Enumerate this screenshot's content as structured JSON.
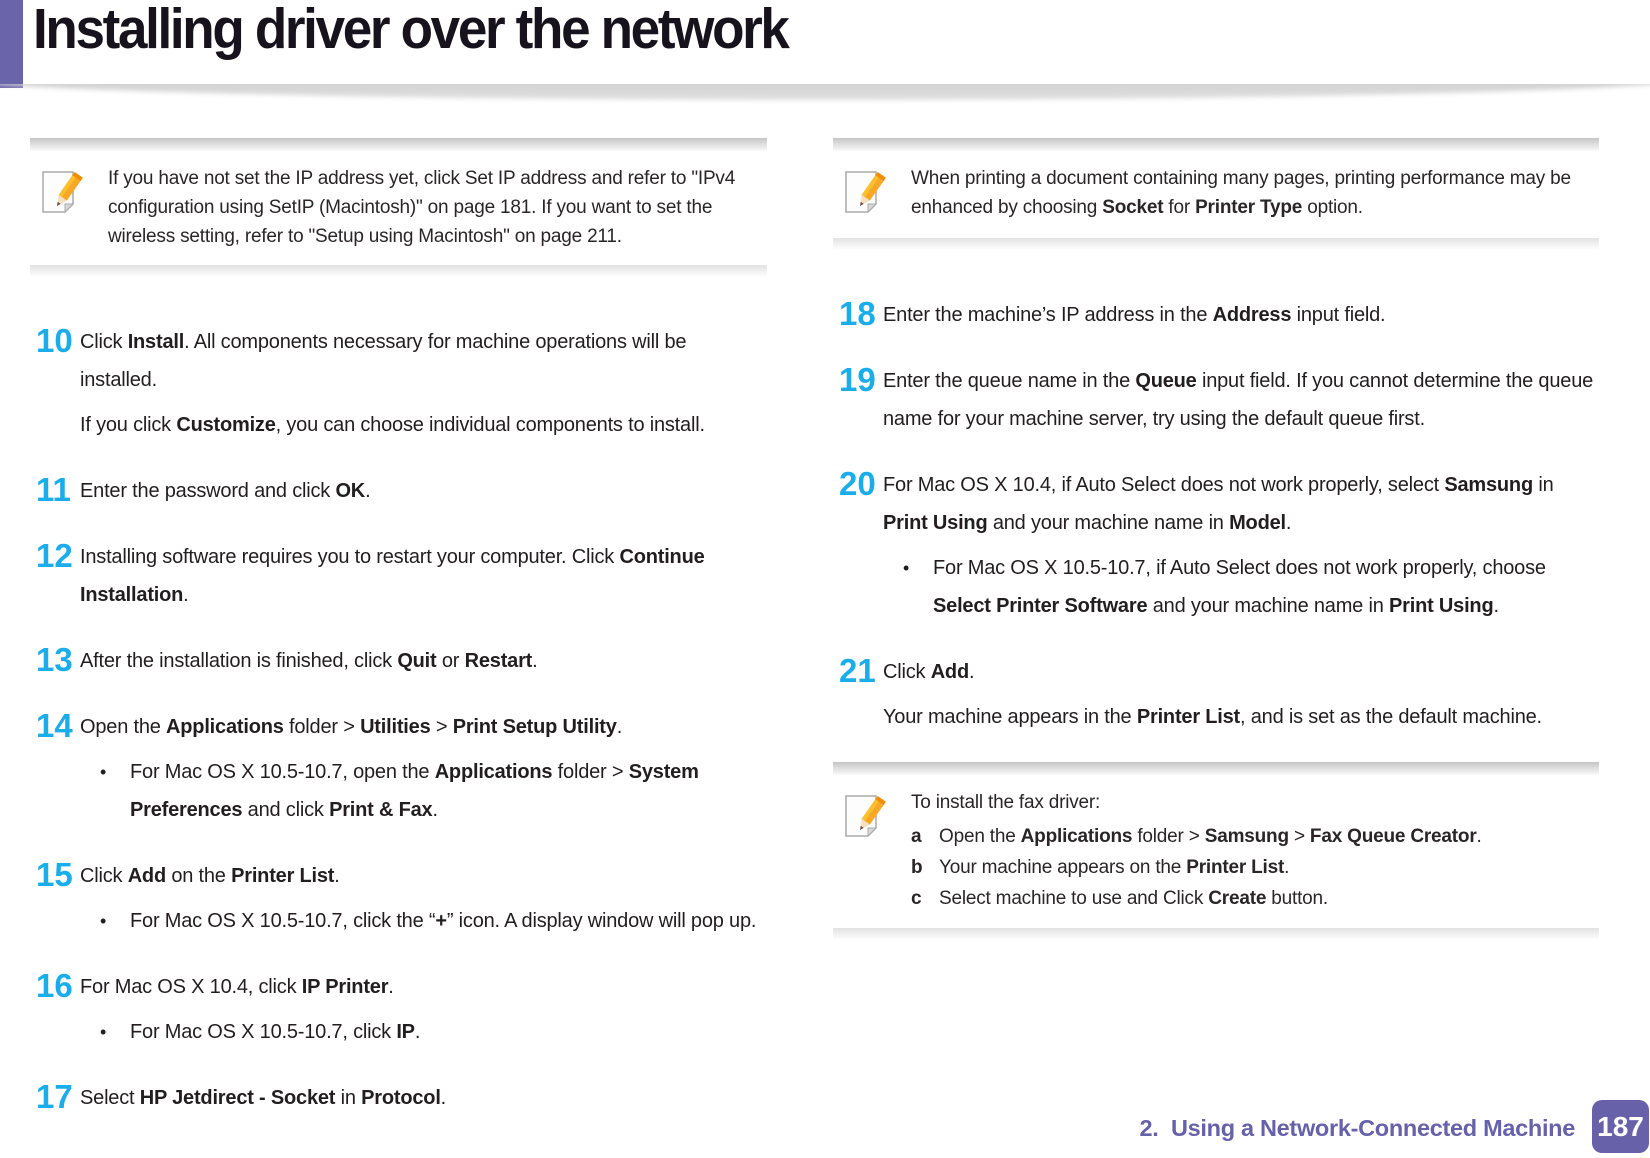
{
  "header": {
    "title": "Installing driver over the network"
  },
  "footer": {
    "chapter": "2.  Using a Network-Connected Machine",
    "page_number": "187"
  },
  "colors": {
    "accent_purple": "#6a64ab",
    "step_number_cyan": "#1badea",
    "footer_purple": "#6661a8"
  },
  "left_column": {
    "note": {
      "icon": "pencil-note-icon",
      "text": [
        "If you have not set the IP address yet, click Set IP address and refer to \"IPv4 configuration using SetIP (Macintosh)\" on page 181. If you want to set the wireless setting, refer to \"Setup using Macintosh\" on page 211."
      ]
    },
    "steps": [
      {
        "number": "10",
        "paragraphs": [
          [
            "Click ",
            {
              "b": "Install"
            },
            ". All components necessary for machine operations will be installed."
          ],
          [
            "If you click ",
            {
              "b": "Customize"
            },
            ", you can choose individual components to install."
          ]
        ]
      },
      {
        "number": "11",
        "paragraphs": [
          [
            "Enter the password and click ",
            {
              "b": "OK"
            },
            "."
          ]
        ]
      },
      {
        "number": "12",
        "paragraphs": [
          [
            "Installing software requires you to restart your computer. Click ",
            {
              "b": "Continue Installation"
            },
            "."
          ]
        ]
      },
      {
        "number": "13",
        "paragraphs": [
          [
            "After the installation is finished, click ",
            {
              "b": "Quit"
            },
            " or ",
            {
              "b": "Restart"
            },
            "."
          ]
        ]
      },
      {
        "number": "14",
        "paragraphs": [
          [
            "Open the ",
            {
              "b": "Applications"
            },
            " folder > ",
            {
              "b": "Utilities"
            },
            " > ",
            {
              "b": "Print Setup Utility"
            },
            "."
          ]
        ],
        "bullets": [
          [
            "For Mac OS X 10.5-10.7, open the ",
            {
              "b": "Applications"
            },
            " folder > ",
            {
              "b": "System Preferences"
            },
            " and click ",
            {
              "b": "Print & Fax"
            },
            "."
          ]
        ]
      },
      {
        "number": "15",
        "paragraphs": [
          [
            "Click ",
            {
              "b": "Add"
            },
            " on the ",
            {
              "b": "Printer List"
            },
            "."
          ]
        ],
        "bullets": [
          [
            "For Mac OS X 10.5-10.7, click the “",
            {
              "b": "+"
            },
            "” icon. A display window will pop up."
          ]
        ]
      },
      {
        "number": "16",
        "paragraphs": [
          [
            "For Mac OS X 10.4, click ",
            {
              "b": "IP Printer"
            },
            "."
          ]
        ],
        "bullets": [
          [
            "For Mac OS X 10.5-10.7, click ",
            {
              "b": "IP"
            },
            "."
          ]
        ]
      },
      {
        "number": "17",
        "paragraphs": [
          [
            "Select ",
            {
              "b": "HP Jetdirect - Socket"
            },
            " in ",
            {
              "b": "Protocol"
            },
            "."
          ]
        ]
      }
    ]
  },
  "right_column": {
    "note_top": {
      "icon": "pencil-note-icon",
      "text": [
        "When printing a document containing many pages, printing performance may be enhanced by choosing ",
        {
          "b": "Socket"
        },
        " for ",
        {
          "b": "Printer Type"
        },
        " option."
      ]
    },
    "steps": [
      {
        "number": "18",
        "paragraphs": [
          [
            "Enter the machine’s IP address in the ",
            {
              "b": "Address"
            },
            " input field."
          ]
        ]
      },
      {
        "number": "19",
        "paragraphs": [
          [
            "Enter the queue name in the ",
            {
              "b": "Queue"
            },
            " input field. If you cannot determine the queue name for your machine server, try using the default queue first."
          ]
        ]
      },
      {
        "number": "20",
        "paragraphs": [
          [
            "For Mac OS X 10.4, if Auto Select does not work properly, select ",
            {
              "b": "Samsung"
            },
            " in ",
            {
              "b": "Print Using"
            },
            " and your machine name in ",
            {
              "b": "Model"
            },
            "."
          ]
        ],
        "bullets": [
          [
            "For Mac OS X 10.5-10.7, if Auto Select does not work properly, choose ",
            {
              "b": "Select Printer Software"
            },
            " and your machine name in ",
            {
              "b": "Print Using"
            },
            "."
          ]
        ]
      },
      {
        "number": "21",
        "paragraphs": [
          [
            "Click ",
            {
              "b": "Add"
            },
            "."
          ],
          [
            "Your machine appears in the ",
            {
              "b": "Printer List"
            },
            ", and is set as the default machine."
          ]
        ]
      }
    ],
    "note_bottom": {
      "icon": "pencil-note-icon",
      "intro": [
        "To install the fax driver:"
      ],
      "items": [
        {
          "label": "a",
          "text": [
            "Open the ",
            {
              "b": "Applications"
            },
            " folder > ",
            {
              "b": "Samsung"
            },
            " > ",
            {
              "b": "Fax Queue Creator"
            },
            "."
          ]
        },
        {
          "label": "b",
          "text": [
            "Your machine appears on the ",
            {
              "b": "Printer List"
            },
            "."
          ]
        },
        {
          "label": "c",
          "text": [
            "Select machine to use and Click ",
            {
              "b": "Create"
            },
            " button."
          ]
        }
      ]
    }
  }
}
